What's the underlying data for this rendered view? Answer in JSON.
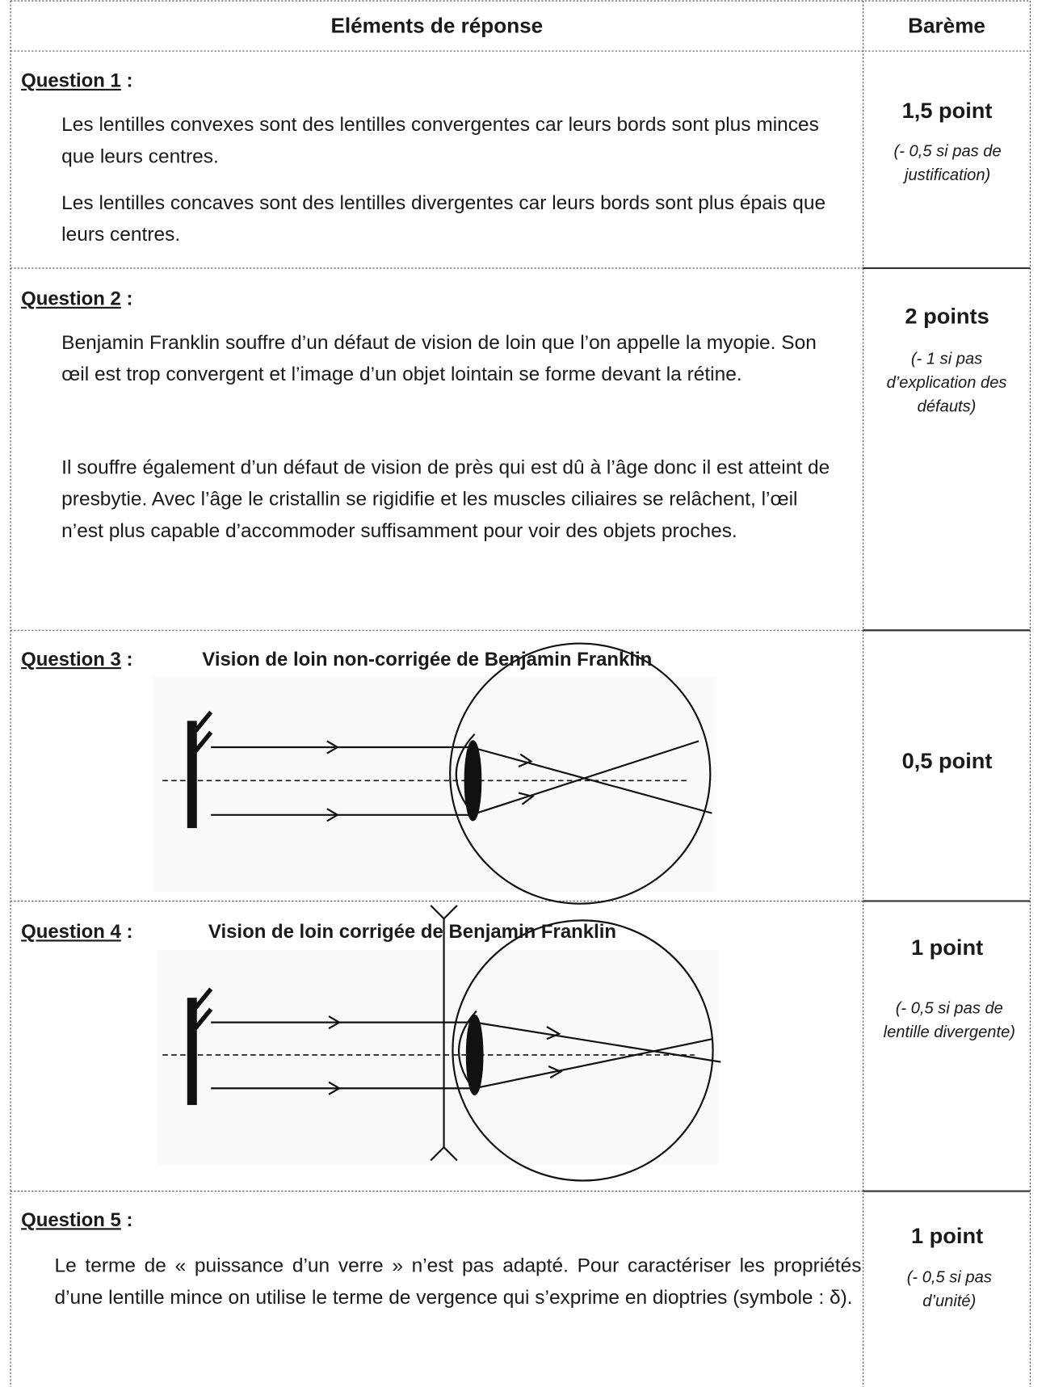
{
  "header": {
    "elements": "Eléments de réponse",
    "bareme": "Barème"
  },
  "rows": [
    {
      "question": "Question 1",
      "colon": ":",
      "paragraphs": [
        "Les lentilles convexes sont des lentilles convergentes car leurs bords sont plus minces que leurs centres.",
        "Les lentilles concaves sont des lentilles divergentes car leurs bords sont plus épais que leurs centres."
      ],
      "score": "1,5 point",
      "note": "(- 0,5 si pas de justification)"
    },
    {
      "question": "Question 2",
      "colon": ":",
      "paragraphs": [
        "Benjamin Franklin souffre d’un défaut de vision de loin que l’on appelle la myopie. Son œil est trop convergent et l’image d’un objet lointain se forme devant la rétine.",
        "Il souffre également d’un défaut de vision de près qui est dû à l’âge donc il est atteint de presbytie. Avec l’âge le cristallin se rigidifie et les muscles ciliaires se relâchent, l’œil n’est plus capable d’accommoder suffisamment pour voir des objets proches."
      ],
      "score": "2 points",
      "note": "(- 1 si pas d’explication des défauts)"
    },
    {
      "question": "Question 3",
      "colon": ":",
      "figure_title": "Vision de loin non-corrigée de Benjamin Franklin",
      "score": "0,5 point"
    },
    {
      "question": "Question 4",
      "colon": ":",
      "figure_title": "Vision de loin corrigée de Benjamin Franklin",
      "score": "1 point",
      "note": "(- 0,5 si pas de lentille divergente)"
    },
    {
      "question": "Question 5",
      "colon": ":",
      "paragraphs": [
        "Le terme de « puissance d’un verre » n’est pas adapté. Pour caractériser les propriétés d’une lentille mince on utilise le terme de vergence qui s’exprime en dioptries (symbole : δ)."
      ],
      "score": "1 point",
      "note": "(- 0,5 si pas d’unité)"
    }
  ]
}
